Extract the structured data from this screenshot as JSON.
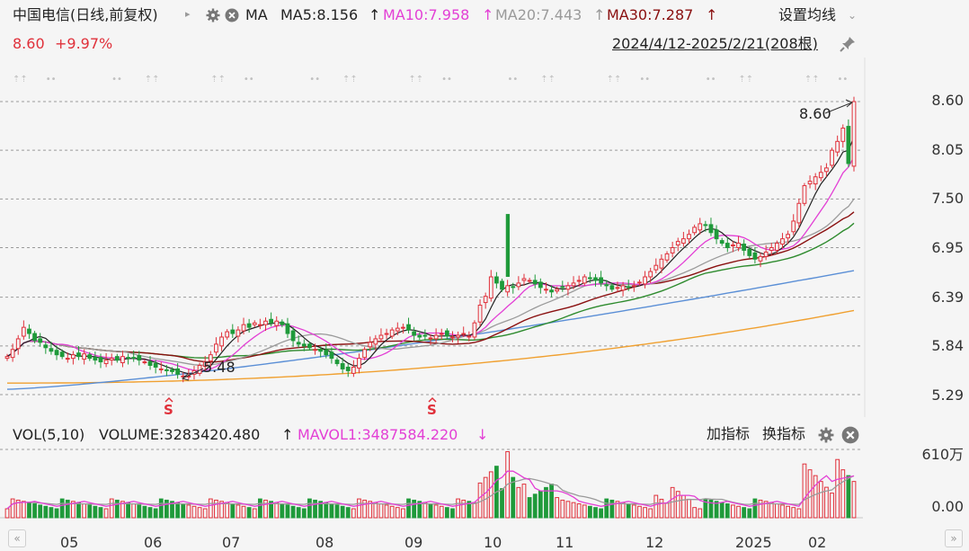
{
  "header": {
    "stock_title": "中国电信(日线,前复权)",
    "ma_label": "MA",
    "ma5": "MA5:8.156",
    "ma10": "MA10:7.958",
    "ma20": "MA20:7.443",
    "ma30": "MA30:7.287",
    "up_arrow": "↑",
    "settings_label": "设置均线",
    "price": "8.60",
    "change": "+9.97%",
    "date_range": "2024/4/12-2025/2/21(208根)"
  },
  "volume_panel": {
    "vol_label": "VOL(5,10)",
    "volume": "VOLUME:3283420.480",
    "volume_arrow": "↑",
    "mavol1": "MAVOL1:3487584.220",
    "mavol1_arrow": "↓",
    "add_indicator": "加指标",
    "switch_indicator": "换指标",
    "y_top": "610万",
    "y_bottom": "0.00"
  },
  "colors": {
    "up": "#e0303a",
    "down": "#1f9a3a",
    "ma5": "#222222",
    "ma10": "#e33fd5",
    "ma20": "#9a9a9a",
    "ma30": "#8a1010",
    "ma60": "#2e8b2e",
    "ma120": "#5b8fd6",
    "ma250": "#f0a030"
  },
  "chart_data": {
    "type": "candlestick",
    "y_ticks": [
      "8.60",
      "8.05",
      "7.50",
      "6.95",
      "6.39",
      "5.84",
      "5.29"
    ],
    "ylim": [
      5.29,
      8.6
    ],
    "x_ticks": [
      "05",
      "06",
      "07",
      "08",
      "09",
      "10",
      "11",
      "12",
      "2025",
      "02"
    ],
    "annotations": {
      "high_label": "8.60",
      "low_label": "5.48",
      "signal_marks": [
        "S",
        "S"
      ]
    },
    "close_series": [
      5.72,
      5.8,
      5.92,
      6.05,
      5.98,
      5.9,
      5.88,
      5.82,
      5.78,
      5.74,
      5.72,
      5.7,
      5.74,
      5.72,
      5.75,
      5.7,
      5.68,
      5.66,
      5.68,
      5.7,
      5.68,
      5.72,
      5.7,
      5.7,
      5.68,
      5.66,
      5.62,
      5.6,
      5.58,
      5.56,
      5.55,
      5.52,
      5.5,
      5.5,
      5.56,
      5.62,
      5.66,
      5.74,
      5.86,
      5.94,
      6.0,
      5.98,
      6.02,
      6.08,
      6.05,
      6.1,
      6.08,
      6.12,
      6.1,
      6.12,
      6.08,
      5.98,
      5.9,
      5.86,
      5.84,
      5.82,
      5.8,
      5.78,
      5.74,
      5.7,
      5.64,
      5.58,
      5.56,
      5.6,
      5.7,
      5.8,
      5.88,
      5.92,
      5.96,
      5.98,
      6.02,
      6.04,
      6.05,
      6.02,
      5.96,
      5.94,
      5.95,
      5.93,
      5.96,
      5.98,
      5.95,
      5.94,
      5.96,
      5.98,
      5.95,
      6.1,
      6.3,
      6.4,
      6.62,
      6.55,
      6.48,
      6.52,
      6.5,
      6.55,
      6.6,
      6.58,
      6.54,
      6.5,
      6.48,
      6.45,
      6.48,
      6.5,
      6.52,
      6.55,
      6.58,
      6.62,
      6.6,
      6.58,
      6.55,
      6.52,
      6.48,
      6.5,
      6.52,
      6.5,
      6.52,
      6.56,
      6.62,
      6.68,
      6.75,
      6.82,
      6.88,
      6.95,
      7.02,
      7.05,
      7.1,
      7.18,
      7.22,
      7.2,
      7.12,
      7.05,
      7.0,
      6.95,
      6.98,
      7.0,
      6.92,
      6.86,
      6.82,
      6.85,
      6.9,
      6.95,
      7.0,
      7.05,
      7.1,
      7.25,
      7.45,
      7.65,
      7.7,
      7.75,
      7.8,
      7.85,
      8.05,
      8.15,
      8.3,
      7.9,
      8.6
    ],
    "ma5_last": 8.156,
    "ma10_last": 7.958,
    "ma20_last": 7.443,
    "ma30_last": 7.287,
    "volume_ylim": [
      0,
      6100000
    ]
  }
}
